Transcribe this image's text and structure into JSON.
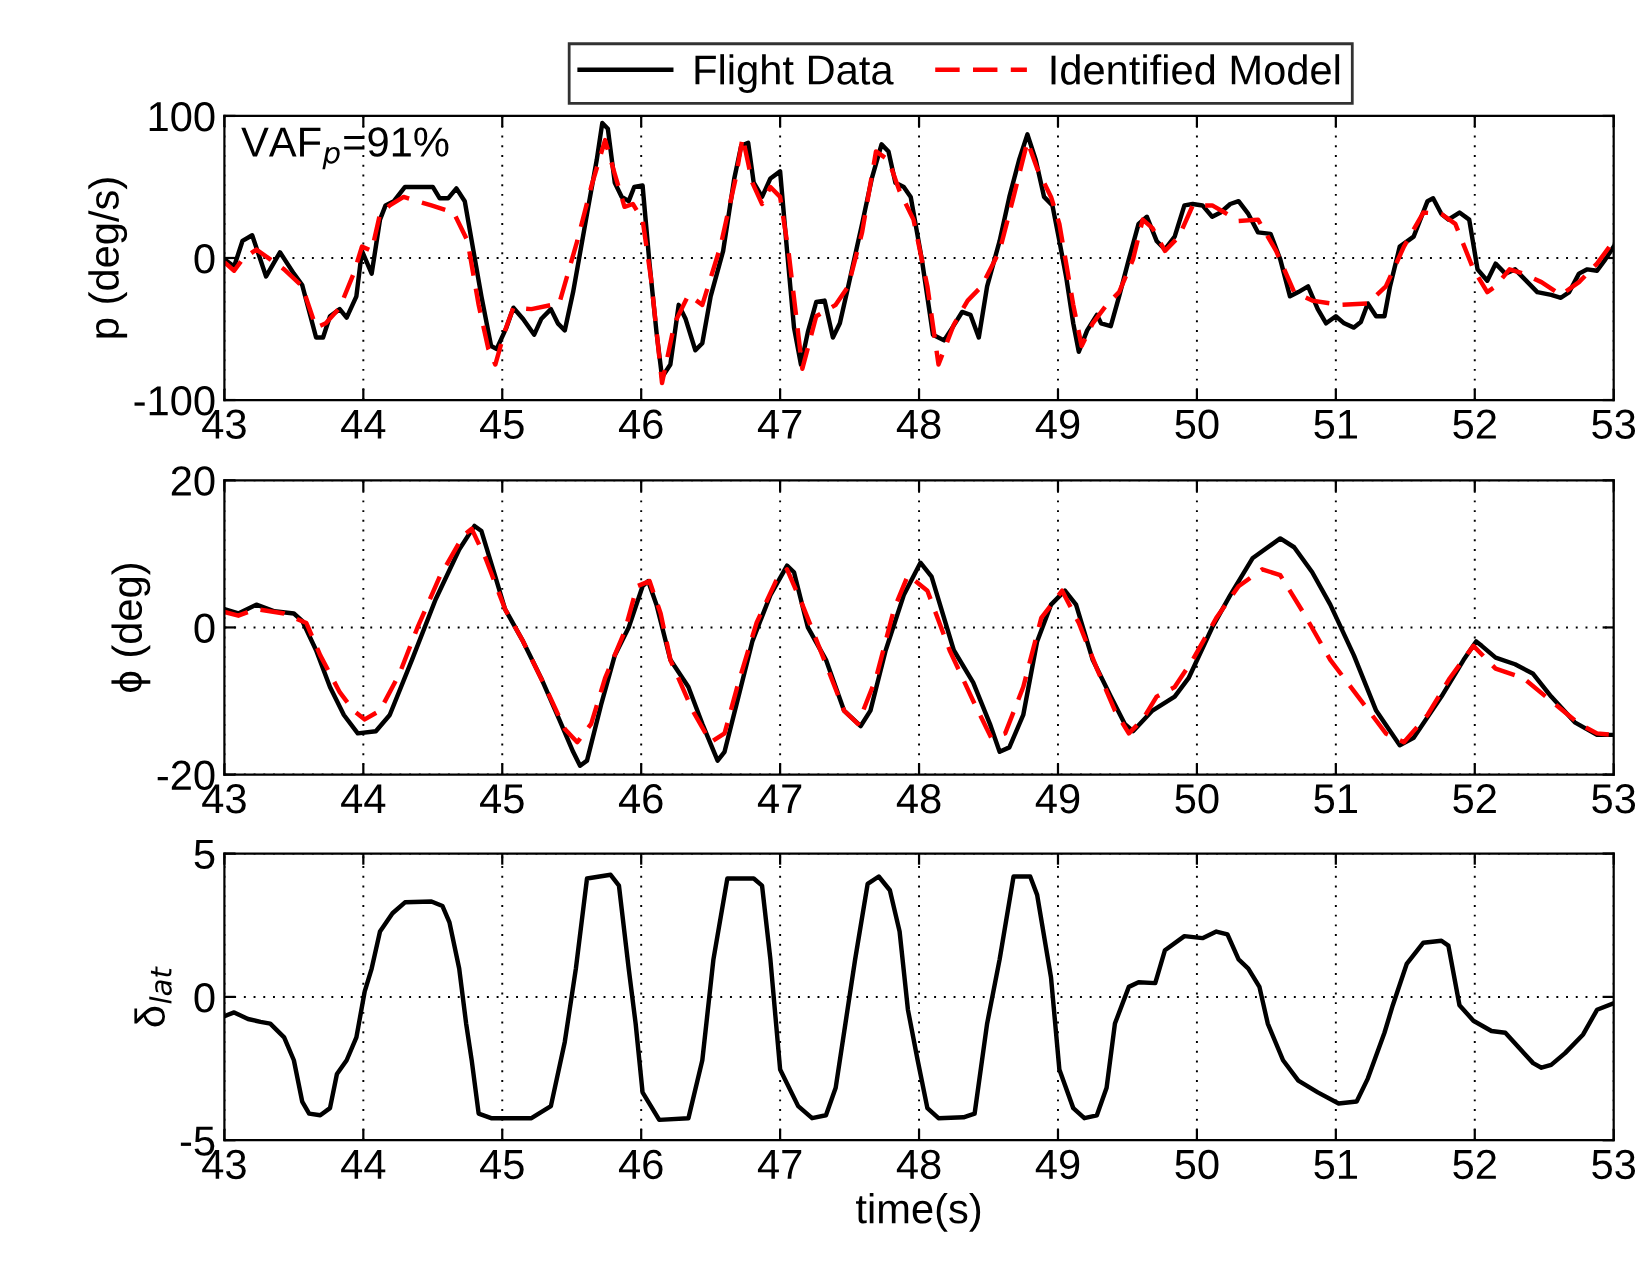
{
  "chart_data": [
    {
      "type": "line",
      "ylabel": "p (deg/s)",
      "annotations": [
        "VAF$_{p}$=91%"
      ],
      "xlim": [
        43,
        53
      ],
      "xticks": [
        43,
        44,
        45,
        46,
        47,
        48,
        49,
        50,
        51,
        52,
        53
      ],
      "ylim": [
        -100,
        100
      ],
      "yticks": [
        -100,
        0,
        100
      ],
      "grid": true,
      "legend": "top",
      "series": [
        {
          "name": "Flight Data",
          "color": "#000000",
          "line_style": "solid",
          "x": [
            43.0,
            43.07,
            43.13,
            43.2,
            43.3,
            43.4,
            43.5,
            43.56,
            43.66,
            43.71,
            43.76,
            43.83,
            43.88,
            43.95,
            43.99,
            44.06,
            44.12,
            44.16,
            44.22,
            44.3,
            44.42,
            44.5,
            44.55,
            44.61,
            44.67,
            44.73,
            44.78,
            44.85,
            44.92,
            44.96,
            45.03,
            45.08,
            45.15,
            45.23,
            45.28,
            45.35,
            45.4,
            45.45,
            45.51,
            45.61,
            45.68,
            45.72,
            45.76,
            45.81,
            45.86,
            45.91,
            45.95,
            46.01,
            46.06,
            46.11,
            46.15,
            46.21,
            46.27,
            46.32,
            46.39,
            46.44,
            46.5,
            46.59,
            46.67,
            46.72,
            46.77,
            46.81,
            46.87,
            46.93,
            47.0,
            47.05,
            47.1,
            47.15,
            47.2,
            47.26,
            47.32,
            47.38,
            47.43,
            47.49,
            47.59,
            47.66,
            47.73,
            47.78,
            47.83,
            47.89,
            47.94,
            48.02,
            48.1,
            48.18,
            48.24,
            48.31,
            48.37,
            48.43,
            48.49,
            48.58,
            48.65,
            48.72,
            48.78,
            48.84,
            48.9,
            48.96,
            49.01,
            49.06,
            49.11,
            49.15,
            49.21,
            49.28,
            49.31,
            49.38,
            49.44,
            49.51,
            49.58,
            49.64,
            49.71,
            49.77,
            49.84,
            49.91,
            49.97,
            50.04,
            50.11,
            50.17,
            50.24,
            50.3,
            50.37,
            50.44,
            50.53,
            50.6,
            50.67,
            50.73,
            50.8,
            50.87,
            50.93,
            51.0,
            51.06,
            51.13,
            51.18,
            51.23,
            51.29,
            51.35,
            51.39,
            51.46,
            51.56,
            51.66,
            51.7,
            51.76,
            51.81,
            51.89,
            51.96,
            52.02,
            52.09,
            52.15,
            52.22,
            52.29,
            52.35,
            52.45,
            52.55,
            52.62,
            52.68,
            52.75,
            52.81,
            52.88,
            52.94,
            53.0
          ],
          "values": [
            -1,
            -6,
            12,
            16,
            -13,
            4,
            -11,
            -19,
            -56,
            -56,
            -41,
            -36,
            -42,
            -27,
            5,
            -11,
            27,
            37,
            40,
            50,
            50,
            50,
            42,
            42,
            49,
            40,
            12,
            -27,
            -62,
            -64,
            -49,
            -35,
            -43,
            -54,
            -43,
            -36,
            -46,
            -51,
            -24,
            31,
            69,
            95,
            91,
            53,
            43,
            40,
            50,
            51,
            -4,
            -52,
            -84,
            -75,
            -33,
            -43,
            -65,
            -60,
            -27,
            5,
            56,
            79,
            81,
            53,
            43,
            56,
            61,
            5,
            -49,
            -75,
            -52,
            -31,
            -30,
            -56,
            -46,
            -20,
            24,
            56,
            80,
            75,
            53,
            50,
            43,
            -1,
            -54,
            -58,
            -49,
            -38,
            -40,
            -56,
            -20,
            12,
            43,
            69,
            87,
            69,
            43,
            37,
            12,
            -14,
            -46,
            -66,
            -51,
            -40,
            -46,
            -48,
            -27,
            -1,
            24,
            29,
            12,
            6,
            15,
            37,
            38,
            37,
            29,
            32,
            38,
            40,
            31,
            18,
            17,
            -1,
            -27,
            -24,
            -20,
            -36,
            -46,
            -41,
            -46,
            -49,
            -45,
            -32,
            -41,
            -41,
            -20,
            8,
            15,
            40,
            42,
            31,
            27,
            32,
            27,
            -8,
            -16,
            -4,
            -11,
            -8,
            -14,
            -24,
            -26,
            -28,
            -24,
            -11,
            -8,
            -9,
            -1,
            8
          ]
        },
        {
          "name": "Identified Model",
          "color": "#ff0000",
          "line_style": "dashed",
          "x": [
            43.0,
            43.07,
            43.13,
            43.23,
            43.33,
            43.43,
            43.56,
            43.66,
            43.73,
            43.83,
            43.93,
            43.99,
            44.06,
            44.12,
            44.19,
            44.29,
            44.49,
            44.65,
            44.75,
            44.83,
            44.9,
            44.95,
            45.02,
            45.08,
            45.21,
            45.41,
            45.54,
            45.64,
            45.74,
            45.81,
            45.88,
            45.94,
            46.01,
            46.07,
            46.15,
            46.24,
            46.34,
            46.44,
            46.57,
            46.68,
            46.73,
            46.8,
            46.87,
            46.93,
            47.0,
            47.06,
            47.16,
            47.26,
            47.4,
            47.49,
            47.59,
            47.69,
            47.78,
            47.86,
            47.96,
            48.06,
            48.14,
            48.25,
            48.35,
            48.45,
            48.58,
            48.68,
            48.78,
            48.85,
            48.95,
            49.01,
            49.11,
            49.17,
            49.25,
            49.35,
            49.44,
            49.54,
            49.61,
            49.68,
            49.77,
            49.87,
            49.97,
            50.11,
            50.2,
            50.3,
            50.44,
            50.57,
            50.7,
            50.83,
            51.03,
            51.23,
            51.36,
            51.49,
            51.63,
            51.76,
            51.86,
            51.99,
            52.09,
            52.15,
            52.25,
            52.35,
            52.48,
            52.62,
            52.75,
            52.88,
            53.0
          ],
          "values": [
            -3,
            -9,
            -1,
            6,
            -1,
            -8,
            -20,
            -49,
            -46,
            -35,
            -11,
            8,
            5,
            31,
            37,
            43,
            37,
            32,
            12,
            -33,
            -64,
            -75,
            -51,
            -35,
            -36,
            -32,
            12,
            50,
            83,
            59,
            36,
            38,
            27,
            -14,
            -88,
            -46,
            -26,
            -33,
            8,
            56,
            85,
            53,
            38,
            50,
            43,
            5,
            -78,
            -41,
            -33,
            -20,
            18,
            75,
            69,
            47,
            27,
            -20,
            -75,
            -47,
            -30,
            -20,
            5,
            43,
            82,
            63,
            43,
            24,
            -33,
            -62,
            -46,
            -33,
            -24,
            -1,
            27,
            21,
            5,
            15,
            37,
            37,
            32,
            26,
            27,
            5,
            -24,
            -30,
            -33,
            -32,
            -20,
            8,
            32,
            31,
            24,
            -8,
            -24,
            -20,
            -8,
            -11,
            -17,
            -26,
            -17,
            -4,
            12
          ]
        }
      ]
    },
    {
      "type": "line",
      "ylabel": "ϕ (deg)",
      "xlim": [
        43,
        53
      ],
      "xticks": [
        43,
        44,
        45,
        46,
        47,
        48,
        49,
        50,
        51,
        52,
        53
      ],
      "ylim": [
        -20,
        20
      ],
      "yticks": [
        -20,
        0,
        20
      ],
      "grid": true,
      "series": [
        {
          "color": "#000000",
          "line_style": "solid",
          "x": [
            43.0,
            43.1,
            43.23,
            43.36,
            43.5,
            43.56,
            43.66,
            43.76,
            43.86,
            43.96,
            44.09,
            44.19,
            44.35,
            44.52,
            44.69,
            44.8,
            44.85,
            44.95,
            45.02,
            45.15,
            45.28,
            45.41,
            45.51,
            45.56,
            45.61,
            45.71,
            45.81,
            45.91,
            46.01,
            46.05,
            46.11,
            46.21,
            46.34,
            46.44,
            46.55,
            46.6,
            46.7,
            46.8,
            46.93,
            47.05,
            47.1,
            47.2,
            47.33,
            47.46,
            47.58,
            47.65,
            47.76,
            47.89,
            48.01,
            48.09,
            48.25,
            48.39,
            48.51,
            48.58,
            48.65,
            48.75,
            48.85,
            48.95,
            49.05,
            49.13,
            49.25,
            49.38,
            49.48,
            49.54,
            49.68,
            49.84,
            49.94,
            50.11,
            50.24,
            50.4,
            50.6,
            50.7,
            50.83,
            50.96,
            51.13,
            51.29,
            51.46,
            51.56,
            51.76,
            51.92,
            52.01,
            52.05,
            52.15,
            52.29,
            52.42,
            52.55,
            52.72,
            52.88,
            53.0
          ],
          "values": [
            2.5,
            1.9,
            3.1,
            2.2,
            1.9,
            0.9,
            -3.1,
            -8.1,
            -11.9,
            -14.4,
            -14.1,
            -11.9,
            -4.4,
            3.8,
            10.6,
            13.8,
            13.1,
            6.9,
            2.5,
            -1.9,
            -6.9,
            -12.5,
            -16.9,
            -18.8,
            -18.1,
            -10.6,
            -3.8,
            0,
            5.6,
            6.3,
            3.1,
            -4.4,
            -8.1,
            -13.1,
            -18.1,
            -16.9,
            -9.4,
            -1.9,
            4.4,
            8.4,
            7.5,
            0,
            -4.4,
            -11.3,
            -13.4,
            -11.3,
            -3.1,
            4.4,
            8.8,
            6.9,
            -3.1,
            -7.5,
            -13.1,
            -16.9,
            -16.3,
            -11.9,
            -1.9,
            3.1,
            5.0,
            3.1,
            -4.4,
            -9.4,
            -13.1,
            -14.1,
            -11.3,
            -9.4,
            -6.9,
            0,
            4.4,
            9.4,
            12.1,
            10.9,
            7.5,
            3.1,
            -3.8,
            -11.3,
            -16.0,
            -15.0,
            -9.4,
            -4.4,
            -1.9,
            -2.5,
            -4.1,
            -5.0,
            -6.3,
            -9.4,
            -12.9,
            -14.6,
            -14.6
          ]
        },
        {
          "color": "#ff0000",
          "line_style": "dashed",
          "x": [
            43.0,
            43.1,
            43.23,
            43.43,
            43.59,
            43.69,
            43.83,
            43.93,
            44.01,
            44.12,
            44.26,
            44.39,
            44.55,
            44.72,
            44.78,
            44.88,
            45.02,
            45.15,
            45.31,
            45.45,
            45.54,
            45.64,
            45.74,
            45.88,
            45.97,
            46.06,
            46.14,
            46.21,
            46.37,
            46.5,
            46.6,
            46.7,
            46.83,
            46.97,
            47.05,
            47.16,
            47.33,
            47.46,
            47.56,
            47.69,
            47.82,
            47.92,
            48.06,
            48.22,
            48.39,
            48.52,
            48.62,
            48.75,
            48.88,
            49.03,
            49.15,
            49.28,
            49.41,
            49.51,
            49.61,
            49.71,
            49.84,
            49.97,
            50.14,
            50.3,
            50.47,
            50.6,
            50.77,
            50.96,
            51.16,
            51.36,
            51.49,
            51.66,
            51.82,
            51.99,
            52.15,
            52.35,
            52.55,
            52.75,
            52.88,
            53.0
          ],
          "values": [
            2.1,
            1.6,
            2.5,
            1.9,
            0.6,
            -3.8,
            -8.8,
            -11.3,
            -12.5,
            -11.3,
            -6.3,
            0,
            6.9,
            12.5,
            13.4,
            9.4,
            2.5,
            -1.9,
            -8.1,
            -13.8,
            -15.6,
            -13.1,
            -6.9,
            -0.6,
            5.6,
            6.3,
            1.9,
            -4.4,
            -11.3,
            -15.6,
            -14.4,
            -7.5,
            0.6,
            6.3,
            7.9,
            3.1,
            -5.0,
            -11.3,
            -13.1,
            -6.9,
            2.5,
            7.1,
            5.0,
            -3.1,
            -10.0,
            -15.0,
            -14.4,
            -8.1,
            1.3,
            5.0,
            0.6,
            -5.6,
            -11.3,
            -14.4,
            -12.5,
            -9.4,
            -8.1,
            -4.4,
            1.3,
            5.6,
            7.9,
            7.1,
            1.9,
            -4.4,
            -9.4,
            -14.4,
            -15.6,
            -11.9,
            -6.9,
            -2.5,
            -5.6,
            -6.9,
            -10.0,
            -13.1,
            -14.4,
            -14.6
          ]
        }
      ]
    },
    {
      "type": "line",
      "ylabel": "δ$_{lat}$",
      "xlabel": "time(s)",
      "xlim": [
        43,
        53
      ],
      "xticks": [
        43,
        44,
        45,
        46,
        47,
        48,
        49,
        50,
        51,
        52,
        53
      ],
      "ylim": [
        -5,
        5
      ],
      "yticks": [
        -5,
        0,
        5
      ],
      "grid": true,
      "series": [
        {
          "color": "#000000",
          "line_style": "solid",
          "x": [
            43.0,
            43.07,
            43.17,
            43.26,
            43.33,
            43.43,
            43.5,
            43.56,
            43.61,
            43.69,
            43.76,
            43.81,
            43.88,
            43.95,
            44.01,
            44.06,
            44.12,
            44.21,
            44.3,
            44.49,
            44.57,
            44.62,
            44.69,
            44.74,
            44.78,
            44.83,
            44.92,
            45.21,
            45.35,
            45.45,
            45.53,
            45.61,
            45.78,
            45.84,
            45.91,
            45.96,
            46.01,
            46.13,
            46.34,
            46.44,
            46.52,
            46.62,
            46.81,
            46.87,
            46.93,
            47.0,
            47.13,
            47.23,
            47.33,
            47.4,
            47.47,
            47.54,
            47.63,
            47.71,
            47.79,
            47.86,
            47.92,
            47.99,
            48.06,
            48.14,
            48.32,
            48.4,
            48.49,
            48.58,
            48.68,
            48.8,
            48.85,
            48.95,
            49.01,
            49.11,
            49.19,
            49.28,
            49.35,
            49.41,
            49.51,
            49.58,
            49.7,
            49.77,
            49.91,
            50.04,
            50.14,
            50.22,
            50.3,
            50.37,
            50.45,
            50.51,
            50.62,
            50.73,
            50.87,
            51.02,
            51.15,
            51.23,
            51.35,
            51.41,
            51.51,
            51.63,
            51.76,
            51.81,
            51.89,
            51.99,
            52.12,
            52.22,
            52.34,
            52.42,
            52.48,
            52.55,
            52.65,
            52.78,
            52.88,
            53.0
          ],
          "values": [
            -0.67,
            -0.54,
            -0.77,
            -0.87,
            -0.93,
            -1.41,
            -2.21,
            -3.65,
            -4.07,
            -4.13,
            -3.88,
            -2.69,
            -2.21,
            -1.41,
            0.19,
            0.99,
            2.28,
            2.92,
            3.3,
            3.33,
            3.17,
            2.6,
            0.99,
            -0.93,
            -2.21,
            -4.07,
            -4.23,
            -4.23,
            -3.81,
            -1.57,
            0.99,
            4.13,
            4.26,
            3.88,
            0.99,
            -0.93,
            -3.33,
            -4.29,
            -4.23,
            -2.21,
            1.31,
            4.13,
            4.13,
            3.88,
            1.31,
            -2.53,
            -3.81,
            -4.23,
            -4.13,
            -3.17,
            -0.93,
            1.31,
            3.94,
            4.2,
            3.72,
            2.28,
            -0.45,
            -2.21,
            -3.88,
            -4.23,
            -4.2,
            -4.07,
            -0.93,
            1.31,
            4.2,
            4.2,
            3.56,
            0.67,
            -2.53,
            -3.88,
            -4.23,
            -4.13,
            -3.17,
            -0.93,
            0.35,
            0.51,
            0.48,
            1.63,
            2.12,
            2.05,
            2.28,
            2.18,
            1.31,
            0.99,
            0.35,
            -0.93,
            -2.21,
            -2.92,
            -3.33,
            -3.72,
            -3.65,
            -2.85,
            -1.25,
            -0.29,
            1.15,
            1.89,
            1.96,
            1.79,
            -0.29,
            -0.83,
            -1.19,
            -1.25,
            -1.89,
            -2.31,
            -2.47,
            -2.37,
            -1.96,
            -1.31,
            -0.45,
            -0.22
          ]
        }
      ]
    }
  ]
}
